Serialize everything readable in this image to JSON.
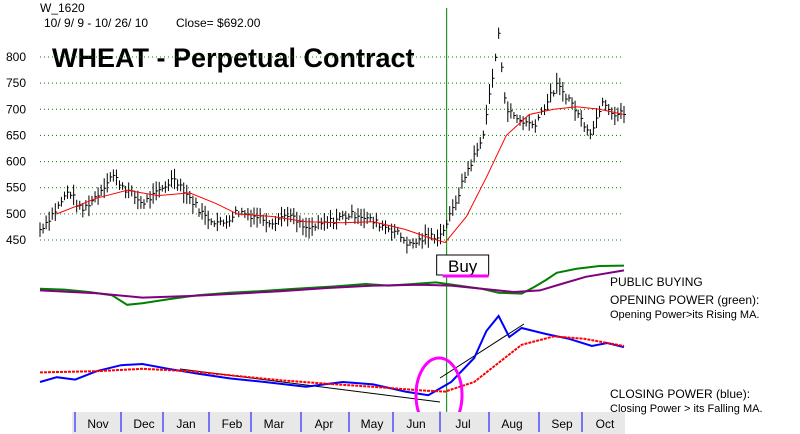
{
  "header": {
    "symbol": "W_1620",
    "date_range": "10/ 9/ 9 - 10/ 26/ 10",
    "close_text": "Close= $692.00",
    "title": "WHEAT - Perpetual Contract"
  },
  "buy_label": "Buy",
  "panel_labels": {
    "public_buying": "PUBLIC BUYING",
    "opening_power_title": "OPENING POWER (green):",
    "opening_power_desc": "Opening Power>its Rising MA.",
    "closing_power_title": "CLOSING POWER (blue):",
    "closing_power_desc": "Closing Power > its Falling MA."
  },
  "colors": {
    "price": "#000000",
    "price_ma": "#ff0000",
    "opening_power": "#008000",
    "opening_power_ma": "#800080",
    "closing_power": "#0000ff",
    "closing_power_ma": "#ff0000",
    "buy_line": "#008000",
    "buy_underline": "#ff00ff",
    "ellipse": "#ff00ff",
    "month_band": "#e8e8e8",
    "month_tick": "#0000ff"
  },
  "chart_data": {
    "type": "line",
    "y_ticks": [
      800,
      750,
      700,
      650,
      600,
      550,
      500,
      450
    ],
    "ylim": [
      430,
      840
    ],
    "months": [
      "Nov",
      "Dec",
      "Jan",
      "Feb",
      "Mar",
      "Apr",
      "May",
      "Jun",
      "Jul",
      "Aug",
      "Sep",
      "Oct"
    ],
    "x_range": [
      "2009-10-09",
      "2010-10-26"
    ],
    "buy_date": "2010-07-02",
    "price_points": [
      [
        "2009-10-09",
        470
      ],
      [
        "2009-10-20",
        510
      ],
      [
        "2009-10-28",
        545
      ],
      [
        "2009-11-05",
        505
      ],
      [
        "2009-11-15",
        535
      ],
      [
        "2009-11-25",
        575
      ],
      [
        "2009-12-05",
        545
      ],
      [
        "2009-12-15",
        520
      ],
      [
        "2009-12-25",
        540
      ],
      [
        "2010-01-05",
        570
      ],
      [
        "2010-01-15",
        530
      ],
      [
        "2010-01-25",
        495
      ],
      [
        "2010-02-05",
        480
      ],
      [
        "2010-02-15",
        505
      ],
      [
        "2010-02-28",
        495
      ],
      [
        "2010-03-10",
        485
      ],
      [
        "2010-03-20",
        500
      ],
      [
        "2010-04-01",
        470
      ],
      [
        "2010-04-12",
        480
      ],
      [
        "2010-04-25",
        495
      ],
      [
        "2010-05-05",
        500
      ],
      [
        "2010-05-15",
        485
      ],
      [
        "2010-05-28",
        470
      ],
      [
        "2010-06-08",
        440
      ],
      [
        "2010-06-18",
        455
      ],
      [
        "2010-06-28",
        460
      ],
      [
        "2010-07-05",
        500
      ],
      [
        "2010-07-15",
        580
      ],
      [
        "2010-07-25",
        640
      ],
      [
        "2010-08-01",
        760
      ],
      [
        "2010-08-05",
        840
      ],
      [
        "2010-08-10",
        700
      ],
      [
        "2010-08-18",
        680
      ],
      [
        "2010-08-28",
        670
      ],
      [
        "2010-09-05",
        710
      ],
      [
        "2010-09-12",
        745
      ],
      [
        "2010-09-20",
        720
      ],
      [
        "2010-09-28",
        680
      ],
      [
        "2010-10-05",
        655
      ],
      [
        "2010-10-12",
        720
      ],
      [
        "2010-10-20",
        690
      ],
      [
        "2010-10-26",
        692
      ]
    ],
    "price_ma_points": [
      [
        "2009-10-20",
        500
      ],
      [
        "2009-11-15",
        530
      ],
      [
        "2009-12-05",
        545
      ],
      [
        "2009-12-25",
        535
      ],
      [
        "2010-01-15",
        540
      ],
      [
        "2010-02-01",
        520
      ],
      [
        "2010-02-15",
        500
      ],
      [
        "2010-03-10",
        495
      ],
      [
        "2010-04-01",
        485
      ],
      [
        "2010-04-25",
        483
      ],
      [
        "2010-05-15",
        485
      ],
      [
        "2010-06-05",
        470
      ],
      [
        "2010-06-20",
        455
      ],
      [
        "2010-07-01",
        445
      ],
      [
        "2010-07-15",
        495
      ],
      [
        "2010-07-28",
        570
      ],
      [
        "2010-08-10",
        650
      ],
      [
        "2010-08-25",
        690
      ],
      [
        "2010-09-10",
        700
      ],
      [
        "2010-09-25",
        705
      ],
      [
        "2010-10-10",
        700
      ],
      [
        "2010-10-26",
        690
      ]
    ],
    "opening_power": [
      [
        "2009-10-09",
        0.78
      ],
      [
        "2009-10-25",
        0.76
      ],
      [
        "2009-11-10",
        0.7
      ],
      [
        "2009-11-25",
        0.62
      ],
      [
        "2009-12-05",
        0.38
      ],
      [
        "2009-12-15",
        0.42
      ],
      [
        "2010-01-01",
        0.52
      ],
      [
        "2010-01-20",
        0.62
      ],
      [
        "2010-02-10",
        0.68
      ],
      [
        "2010-03-01",
        0.72
      ],
      [
        "2010-03-25",
        0.78
      ],
      [
        "2010-04-20",
        0.84
      ],
      [
        "2010-05-10",
        0.9
      ],
      [
        "2010-05-25",
        0.86
      ],
      [
        "2010-06-10",
        0.9
      ],
      [
        "2010-06-25",
        0.94
      ],
      [
        "2010-07-10",
        0.86
      ],
      [
        "2010-07-25",
        0.78
      ],
      [
        "2010-08-05",
        0.68
      ],
      [
        "2010-08-20",
        0.66
      ],
      [
        "2010-08-28",
        0.82
      ],
      [
        "2010-09-05",
        1.0
      ],
      [
        "2010-09-12",
        1.18
      ],
      [
        "2010-09-25",
        1.28
      ],
      [
        "2010-10-10",
        1.35
      ],
      [
        "2010-10-26",
        1.36
      ]
    ],
    "opening_power_ma": [
      [
        "2009-10-09",
        0.74
      ],
      [
        "2009-11-15",
        0.67
      ],
      [
        "2009-12-15",
        0.56
      ],
      [
        "2010-01-15",
        0.6
      ],
      [
        "2010-02-15",
        0.66
      ],
      [
        "2010-03-15",
        0.72
      ],
      [
        "2010-04-15",
        0.8
      ],
      [
        "2010-05-15",
        0.86
      ],
      [
        "2010-06-15",
        0.88
      ],
      [
        "2010-07-05",
        0.86
      ],
      [
        "2010-07-25",
        0.78
      ],
      [
        "2010-08-15",
        0.7
      ],
      [
        "2010-09-01",
        0.74
      ],
      [
        "2010-09-15",
        0.9
      ],
      [
        "2010-10-01",
        1.08
      ],
      [
        "2010-10-26",
        1.24
      ]
    ],
    "closing_power": [
      [
        "2009-10-09",
        0.3
      ],
      [
        "2009-10-20",
        0.38
      ],
      [
        "2009-11-01",
        0.34
      ],
      [
        "2009-11-15",
        0.48
      ],
      [
        "2009-12-01",
        0.58
      ],
      [
        "2009-12-15",
        0.6
      ],
      [
        "2010-01-01",
        0.52
      ],
      [
        "2010-01-20",
        0.44
      ],
      [
        "2010-02-10",
        0.36
      ],
      [
        "2010-03-05",
        0.3
      ],
      [
        "2010-04-01",
        0.22
      ],
      [
        "2010-04-25",
        0.3
      ],
      [
        "2010-05-15",
        0.26
      ],
      [
        "2010-06-05",
        0.14
      ],
      [
        "2010-06-20",
        0.08
      ],
      [
        "2010-07-05",
        0.3
      ],
      [
        "2010-07-20",
        0.7
      ],
      [
        "2010-07-28",
        1.15
      ],
      [
        "2010-08-05",
        1.4
      ],
      [
        "2010-08-12",
        1.05
      ],
      [
        "2010-08-20",
        1.2
      ],
      [
        "2010-09-05",
        1.1
      ],
      [
        "2010-09-20",
        1.02
      ],
      [
        "2010-10-05",
        0.9
      ],
      [
        "2010-10-15",
        0.95
      ],
      [
        "2010-10-26",
        0.88
      ]
    ],
    "closing_power_ma": [
      [
        "2009-10-09",
        0.46
      ],
      [
        "2009-11-15",
        0.48
      ],
      [
        "2009-12-15",
        0.52
      ],
      [
        "2010-01-15",
        0.48
      ],
      [
        "2010-02-15",
        0.4
      ],
      [
        "2010-03-15",
        0.33
      ],
      [
        "2010-04-15",
        0.27
      ],
      [
        "2010-05-15",
        0.22
      ],
      [
        "2010-06-15",
        0.16
      ],
      [
        "2010-07-01",
        0.14
      ],
      [
        "2010-07-20",
        0.3
      ],
      [
        "2010-08-05",
        0.62
      ],
      [
        "2010-08-20",
        0.92
      ],
      [
        "2010-09-10",
        1.06
      ],
      [
        "2010-09-30",
        1.02
      ],
      [
        "2010-10-26",
        0.9
      ]
    ]
  }
}
